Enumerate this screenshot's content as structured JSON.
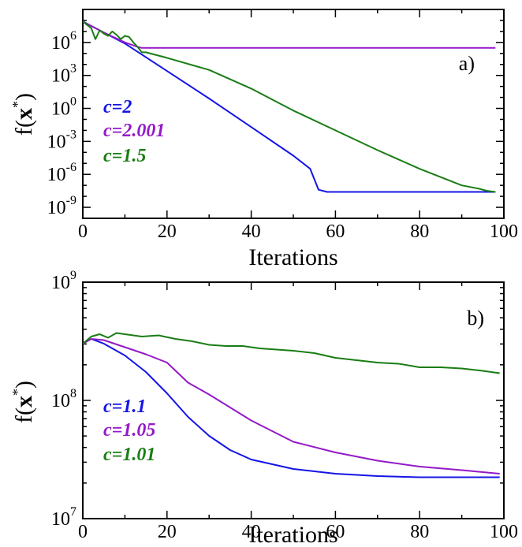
{
  "colors": {
    "blue": "#1414e6",
    "purple": "#9419c8",
    "green": "#197d14"
  },
  "chart_data": [
    {
      "type": "line",
      "panel_label": "a)",
      "xlabel": "Iterations",
      "ylabel": "f(x*)",
      "ylog": true,
      "xlim": [
        0,
        100
      ],
      "ylim": [
        -10,
        9
      ],
      "xticks": [
        "0",
        "20",
        "40",
        "60",
        "80",
        "100"
      ],
      "yticks": [
        {
          "base": "10",
          "exp": "-9"
        },
        {
          "base": "10",
          "exp": "-6"
        },
        {
          "base": "10",
          "exp": "-3"
        },
        {
          "base": "10",
          "exp": "0"
        },
        {
          "base": "10",
          "exp": "3"
        },
        {
          "base": "10",
          "exp": "6"
        }
      ],
      "series": [
        {
          "name": "c=2",
          "color": "#1414e6",
          "x": [
            0,
            5,
            10,
            20,
            30,
            40,
            50,
            54,
            56,
            58,
            60,
            70,
            80,
            90,
            98
          ],
          "log10_y": [
            7.9,
            6.9,
            5.9,
            3.4,
            0.9,
            -1.7,
            -4.3,
            -5.5,
            -7.4,
            -7.6,
            -7.6,
            -7.6,
            -7.6,
            -7.6,
            -7.6
          ]
        },
        {
          "name": "c=2.001",
          "color": "#9419c8",
          "x": [
            0,
            5,
            10,
            13,
            14,
            20,
            40,
            60,
            80,
            98
          ],
          "log10_y": [
            7.9,
            6.9,
            6.0,
            5.6,
            5.5,
            5.5,
            5.5,
            5.5,
            5.5,
            5.5
          ]
        },
        {
          "name": "c=1.5",
          "color": "#197d14",
          "x": [
            0,
            2,
            3,
            4,
            5,
            6,
            7,
            8,
            9,
            10,
            11,
            12,
            13,
            14,
            15,
            20,
            30,
            40,
            50,
            60,
            70,
            80,
            90,
            94,
            96,
            98
          ],
          "log10_y": [
            7.9,
            7.3,
            6.3,
            7.1,
            6.8,
            6.6,
            7.0,
            6.7,
            6.3,
            6.6,
            6.5,
            6.0,
            5.6,
            5.1,
            5.1,
            4.6,
            3.5,
            1.8,
            -0.2,
            -2.0,
            -3.8,
            -5.5,
            -7.0,
            -7.3,
            -7.5,
            -7.6
          ]
        }
      ]
    },
    {
      "type": "line",
      "panel_label": "b)",
      "xlabel": "Iterations",
      "ylabel": "f(x*)",
      "ylog": true,
      "xlim": [
        0,
        100
      ],
      "ylim": [
        7,
        9
      ],
      "xticks": [
        "0",
        "20",
        "40",
        "60",
        "80",
        "100"
      ],
      "yticks": [
        {
          "base": "10",
          "exp": "7"
        },
        {
          "base": "10",
          "exp": "8"
        },
        {
          "base": "10",
          "exp": "9"
        }
      ],
      "series": [
        {
          "name": "c=1.1",
          "color": "#1414e6",
          "x": [
            0,
            2,
            5,
            10,
            15,
            20,
            25,
            30,
            35,
            40,
            50,
            60,
            70,
            80,
            90,
            99
          ],
          "log10_y": [
            8.48,
            8.52,
            8.48,
            8.38,
            8.24,
            8.06,
            7.86,
            7.7,
            7.58,
            7.5,
            7.42,
            7.38,
            7.36,
            7.35,
            7.35,
            7.35
          ]
        },
        {
          "name": "c=1.05",
          "color": "#9419c8",
          "x": [
            0,
            2,
            5,
            10,
            15,
            20,
            25,
            30,
            35,
            40,
            50,
            60,
            70,
            80,
            90,
            99
          ],
          "log10_y": [
            8.48,
            8.52,
            8.51,
            8.45,
            8.39,
            8.32,
            8.15,
            8.05,
            7.94,
            7.83,
            7.65,
            7.56,
            7.49,
            7.44,
            7.41,
            7.38
          ]
        },
        {
          "name": "c=1.01",
          "color": "#197d14",
          "x": [
            0,
            2,
            4,
            6,
            8,
            10,
            14,
            18,
            22,
            26,
            30,
            34,
            38,
            42,
            46,
            50,
            55,
            60,
            65,
            70,
            75,
            80,
            85,
            90,
            95,
            99
          ],
          "log10_y": [
            8.48,
            8.54,
            8.56,
            8.53,
            8.57,
            8.56,
            8.54,
            8.55,
            8.52,
            8.5,
            8.47,
            8.46,
            8.46,
            8.44,
            8.43,
            8.42,
            8.4,
            8.36,
            8.34,
            8.32,
            8.31,
            8.28,
            8.28,
            8.27,
            8.25,
            8.23
          ]
        }
      ]
    }
  ]
}
